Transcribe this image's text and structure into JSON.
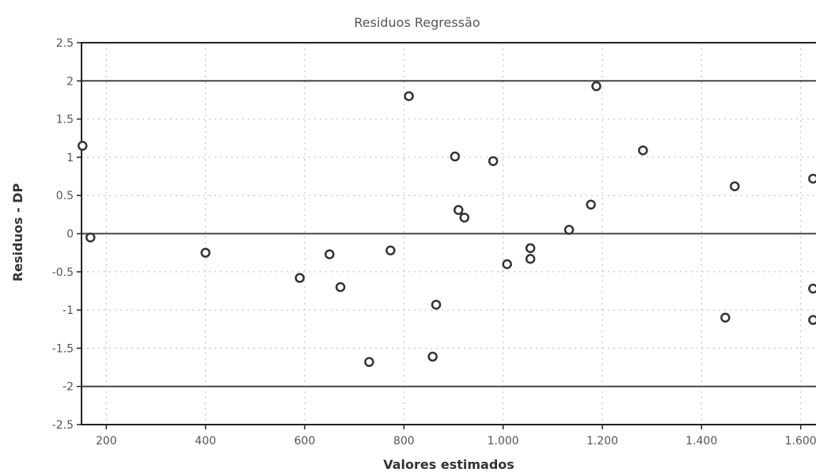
{
  "chart_data": {
    "type": "scatter",
    "title": "Residuos Regressão",
    "xlabel": "Valores estimados",
    "ylabel": "Residuos - DP",
    "xlim": [
      150,
      1650
    ],
    "ylim": [
      -2.5,
      2.5
    ],
    "xticks": [
      200,
      400,
      600,
      800,
      1000,
      1200,
      1400,
      1600
    ],
    "xtick_labels": [
      "200",
      "400",
      "600",
      "800",
      "1.000",
      "1.200",
      "1.400",
      "1.600"
    ],
    "yticks": [
      2.5,
      2,
      1.5,
      1,
      0.5,
      0,
      -0.5,
      -1,
      -1.5,
      -2,
      -2.5
    ],
    "ytick_labels": [
      "2.5",
      "2",
      "1.5",
      "1",
      "0.5",
      "0",
      "-0.5",
      "-1",
      "-1.5",
      "-2",
      "-2.5"
    ],
    "reference_lines": [
      2,
      0,
      -2
    ],
    "grid": true,
    "colors": {
      "marker": "#333333",
      "axis": "#222222",
      "grid": "#bbbbbb",
      "reference": "#444444"
    },
    "points": [
      {
        "x": 152,
        "y": 1.15
      },
      {
        "x": 168,
        "y": -0.05
      },
      {
        "x": 400,
        "y": -0.25
      },
      {
        "x": 590,
        "y": -0.58
      },
      {
        "x": 650,
        "y": -0.27
      },
      {
        "x": 672,
        "y": -0.7
      },
      {
        "x": 730,
        "y": -1.68
      },
      {
        "x": 773,
        "y": -0.22
      },
      {
        "x": 810,
        "y": 1.8
      },
      {
        "x": 858,
        "y": -1.61
      },
      {
        "x": 865,
        "y": -0.93
      },
      {
        "x": 903,
        "y": 1.01
      },
      {
        "x": 910,
        "y": 0.31
      },
      {
        "x": 922,
        "y": 0.21
      },
      {
        "x": 980,
        "y": 0.95
      },
      {
        "x": 1008,
        "y": -0.4
      },
      {
        "x": 1055,
        "y": -0.19
      },
      {
        "x": 1055,
        "y": -0.33
      },
      {
        "x": 1133,
        "y": 0.05
      },
      {
        "x": 1177,
        "y": 0.38
      },
      {
        "x": 1188,
        "y": 1.93
      },
      {
        "x": 1282,
        "y": 1.09
      },
      {
        "x": 1448,
        "y": -1.1
      },
      {
        "x": 1467,
        "y": 0.62
      },
      {
        "x": 1625,
        "y": 0.72
      },
      {
        "x": 1625,
        "y": -0.72
      },
      {
        "x": 1625,
        "y": -1.13
      }
    ]
  }
}
